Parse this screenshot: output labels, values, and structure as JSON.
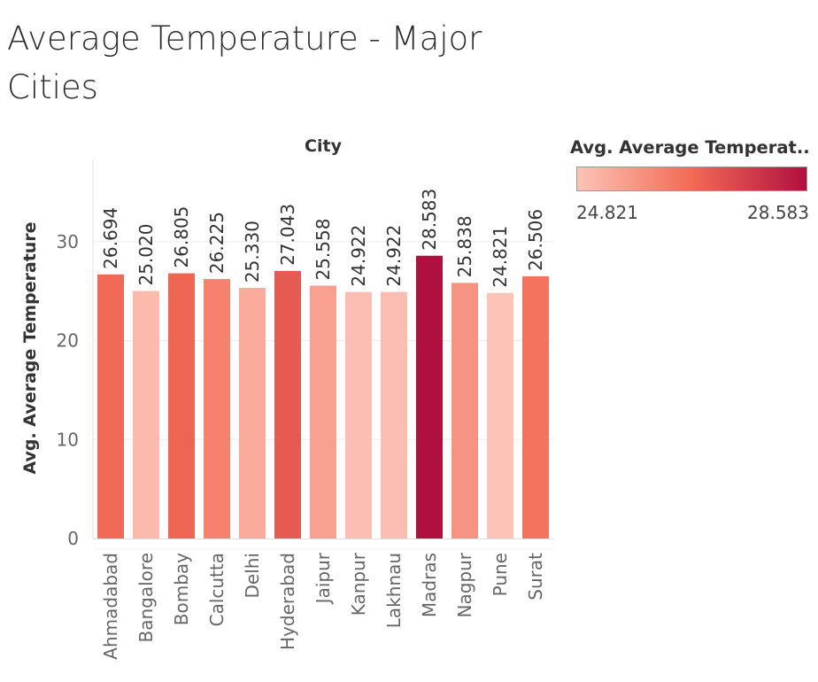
{
  "title": "Average Temperature - Major Cities",
  "legend": {
    "title": "Avg. Average Temperat..",
    "min_label": "24.821",
    "max_label": "28.583",
    "min": 24.821,
    "max": 28.583,
    "color_low": "#fdc3b7",
    "color_mid": "#f26a55",
    "color_high": "#b01040"
  },
  "chart_data": {
    "type": "bar",
    "title": "Average Temperature - Major Cities",
    "column_header": "City",
    "xlabel": "",
    "ylabel": "Avg. Average Temperature",
    "ylim": [
      0,
      38
    ],
    "yticks": [
      0,
      10,
      20,
      30
    ],
    "ytick_labels": [
      "0",
      "10",
      "20",
      "30"
    ],
    "grid": true,
    "legend_position": "top-right",
    "categories": [
      "Ahmadabad",
      "Bangalore",
      "Bombay",
      "Calcutta",
      "Delhi",
      "Hyderabad",
      "Jaipur",
      "Kanpur",
      "Lakhnau",
      "Madras",
      "Nagpur",
      "Pune",
      "Surat"
    ],
    "values": [
      26.694,
      25.02,
      26.805,
      26.225,
      25.33,
      27.043,
      25.558,
      24.922,
      24.922,
      28.583,
      25.838,
      24.821,
      26.506
    ],
    "value_labels": [
      "26.694",
      "25.020",
      "26.805",
      "26.225",
      "25.330",
      "27.043",
      "25.558",
      "24.922",
      "24.922",
      "28.583",
      "25.838",
      "24.821",
      "26.506"
    ]
  }
}
